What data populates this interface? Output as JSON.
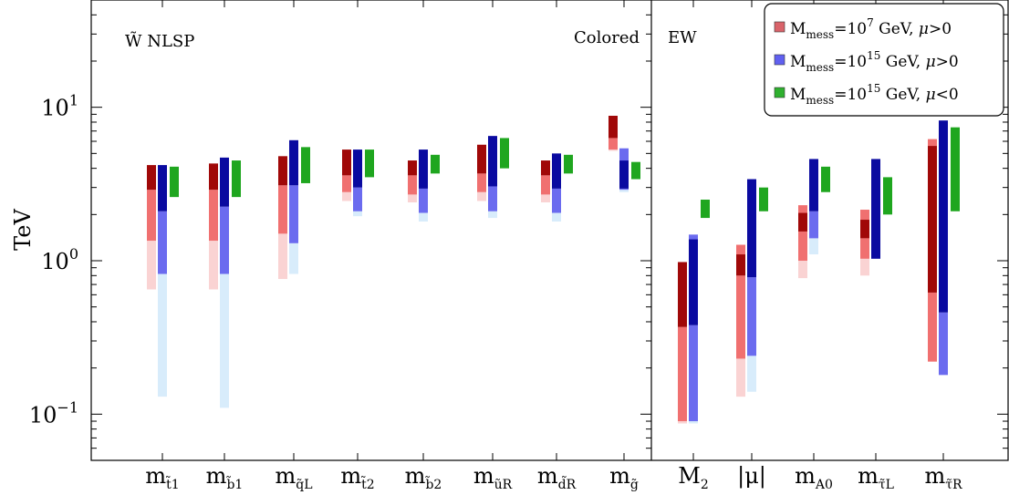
{
  "chart_data": {
    "type": "bar",
    "title": "",
    "ylabel": "TeV",
    "yscale": "log",
    "ylim": [
      0.05,
      50
    ],
    "yticks": [
      {
        "value": 0.1,
        "base": "10",
        "exp": "−1"
      },
      {
        "value": 1,
        "base": "10",
        "exp": "0"
      },
      {
        "value": 10,
        "base": "10",
        "exp": "1"
      }
    ],
    "categories": [
      {
        "base": "m",
        "sub": "t̃₁",
        "sub_text": "t̃1"
      },
      {
        "base": "m",
        "sub": "b̃1",
        "sub_text": "b̃1"
      },
      {
        "base": "m",
        "sub": "q̃L",
        "sub_text": "q̃L"
      },
      {
        "base": "m",
        "sub": "t̃2",
        "sub_text": "t̃2"
      },
      {
        "base": "m",
        "sub": "b̃2",
        "sub_text": "b̃2"
      },
      {
        "base": "m",
        "sub": "ũR",
        "sub_text": "ũR"
      },
      {
        "base": "m",
        "sub": "d̃R",
        "sub_text": "d̃R"
      },
      {
        "base": "m",
        "sub": "g̃",
        "sub_text": "g̃"
      },
      {
        "base": "M",
        "sub": "2",
        "sub_text": "2"
      },
      {
        "base": "|μ|",
        "sub": "",
        "sub_text": ""
      },
      {
        "base": "m",
        "sub": "A⁰",
        "sub_text": "A0"
      },
      {
        "base": "m",
        "sub": "τ̃L",
        "sub_text": "τ̃L"
      },
      {
        "base": "m",
        "sub": "τ̃R",
        "sub_text": "τ̃R"
      }
    ],
    "region_labels": {
      "nlsp": "W̃ NLSP",
      "colored": "Colored",
      "ew": "EW"
    },
    "divider_after_category": 7,
    "legend": {
      "placement": "top-right",
      "entries": [
        {
          "prefix": "M",
          "sub": "mess",
          "mid": "=10",
          "sup": "7",
          "suffix": " GeV, ",
          "mu": "μ",
          "sign": ">0"
        },
        {
          "prefix": "M",
          "sub": "mess",
          "mid": "=10",
          "sup": "15",
          "suffix": " GeV, ",
          "mu": "μ",
          "sign": ">0"
        },
        {
          "prefix": "M",
          "sub": "mess",
          "mid": "=10",
          "sup": "15",
          "suffix": " GeV, ",
          "mu": "μ",
          "sign": "<0"
        }
      ]
    },
    "series": [
      {
        "color": "#d9636a",
        "shades": {
          "dark": "#a00808",
          "mid": "#f07070",
          "light": "#fad3d3"
        },
        "bars": [
          {
            "light": [
              0.65,
              1.35
            ],
            "mid": [
              1.35,
              2.9
            ],
            "dark": [
              2.9,
              4.2
            ]
          },
          {
            "light": [
              0.65,
              1.35
            ],
            "mid": [
              1.35,
              2.9
            ],
            "dark": [
              2.9,
              4.3
            ]
          },
          {
            "light": [
              0.76,
              1.5
            ],
            "mid": [
              1.5,
              3.1
            ],
            "dark": [
              3.1,
              4.8
            ]
          },
          {
            "light": [
              2.45,
              2.8
            ],
            "mid": [
              2.8,
              3.6
            ],
            "dark": [
              3.6,
              5.3
            ]
          },
          {
            "light": [
              2.4,
              2.7
            ],
            "mid": [
              2.7,
              3.6
            ],
            "dark": [
              3.6,
              4.5
            ]
          },
          {
            "light": [
              2.45,
              2.8
            ],
            "mid": [
              2.8,
              3.7
            ],
            "dark": [
              3.7,
              5.7
            ]
          },
          {
            "light": [
              2.4,
              2.7
            ],
            "mid": [
              2.7,
              3.6
            ],
            "dark": [
              3.6,
              4.5
            ]
          },
          {
            "light": [
              5.2,
              5.3
            ],
            "mid": [
              5.3,
              6.3
            ],
            "dark": [
              6.3,
              8.8
            ]
          },
          {
            "light": [
              0.087,
              0.09
            ],
            "mid": [
              0.09,
              0.37
            ],
            "dark": [
              0.37,
              0.98
            ]
          },
          {
            "light": [
              0.13,
              0.23
            ],
            "mid": [
              0.23,
              0.8
            ],
            "dark": [
              0.8,
              1.1
            ],
            "top_mid": [
              1.1,
              1.27
            ]
          },
          {
            "light": [
              0.77,
              1.0
            ],
            "mid": [
              1.0,
              1.55
            ],
            "dark": [
              1.55,
              2.05
            ],
            "top_mid": [
              2.05,
              2.3
            ]
          },
          {
            "light": [
              0.8,
              1.03
            ],
            "mid": [
              1.03,
              1.4
            ],
            "dark": [
              1.4,
              1.85
            ],
            "top_mid": [
              1.85,
              2.15
            ]
          },
          {
            "light": [
              0.22,
              0.22
            ],
            "mid": [
              0.22,
              0.62
            ],
            "dark": [
              0.62,
              5.6
            ],
            "top_mid": [
              5.6,
              6.2
            ]
          }
        ]
      },
      {
        "color": "#6060f0",
        "shades": {
          "dark": "#0a0aa0",
          "mid": "#6b6bef",
          "light": "#d8ecfb"
        },
        "bars": [
          {
            "light": [
              0.13,
              0.82
            ],
            "mid": [
              0.82,
              2.1
            ],
            "dark": [
              2.1,
              4.2
            ]
          },
          {
            "light": [
              0.11,
              0.82
            ],
            "mid": [
              0.82,
              2.25
            ],
            "dark": [
              2.25,
              4.7
            ]
          },
          {
            "light": [
              0.82,
              1.3
            ],
            "mid": [
              1.3,
              3.1
            ],
            "dark": [
              3.1,
              6.1
            ]
          },
          {
            "light": [
              1.95,
              2.1
            ],
            "mid": [
              2.1,
              3.0
            ],
            "dark": [
              3.0,
              5.3
            ]
          },
          {
            "light": [
              1.8,
              2.05
            ],
            "mid": [
              2.05,
              2.95
            ],
            "dark": [
              2.95,
              5.3
            ]
          },
          {
            "light": [
              1.9,
              2.1
            ],
            "mid": [
              2.1,
              3.05
            ],
            "dark": [
              3.05,
              6.5
            ]
          },
          {
            "light": [
              1.8,
              2.05
            ],
            "mid": [
              2.05,
              2.95
            ],
            "dark": [
              2.95,
              5.0
            ]
          },
          {
            "light": [
              2.8,
              2.9
            ],
            "mid": [
              2.9,
              2.95
            ],
            "dark": [
              2.95,
              4.5
            ],
            "top_mid": [
              4.5,
              5.4
            ]
          },
          {
            "light": [
              0.087,
              0.09
            ],
            "mid": [
              0.09,
              0.38
            ],
            "dark": [
              0.38,
              1.38
            ],
            "top_mid": [
              1.38,
              1.48
            ]
          },
          {
            "light": [
              0.14,
              0.24
            ],
            "mid": [
              0.24,
              0.78
            ],
            "dark": [
              0.78,
              3.4
            ]
          },
          {
            "light": [
              1.1,
              1.4
            ],
            "mid": [
              1.4,
              2.1
            ],
            "dark": [
              2.1,
              4.6
            ]
          },
          {
            "light": [
              1.03,
              1.03
            ],
            "mid": [
              1.03,
              1.03
            ],
            "dark": [
              1.03,
              4.6
            ]
          },
          {
            "light": [
              0.18,
              0.18
            ],
            "mid": [
              0.18,
              0.46
            ],
            "dark": [
              0.46,
              8.2
            ]
          }
        ]
      },
      {
        "color": "#2fb02f",
        "shades": {
          "dark": "#1fa61f",
          "mid": "#1fa61f",
          "light": "#1fa61f"
        },
        "bars": [
          {
            "dark": [
              2.6,
              4.1
            ]
          },
          {
            "dark": [
              2.6,
              4.5
            ]
          },
          {
            "dark": [
              3.2,
              5.5
            ]
          },
          {
            "dark": [
              3.5,
              5.3
            ]
          },
          {
            "dark": [
              3.7,
              4.9
            ]
          },
          {
            "dark": [
              4.0,
              6.3
            ]
          },
          {
            "dark": [
              3.7,
              4.9
            ]
          },
          {
            "dark": [
              3.4,
              4.4
            ]
          },
          {
            "dark": [
              1.9,
              2.5
            ]
          },
          {
            "dark": [
              2.1,
              3.0
            ]
          },
          {
            "dark": [
              2.8,
              4.1
            ]
          },
          {
            "dark": [
              2.0,
              3.5
            ]
          },
          {
            "dark": [
              2.1,
              7.4
            ]
          }
        ]
      }
    ]
  }
}
